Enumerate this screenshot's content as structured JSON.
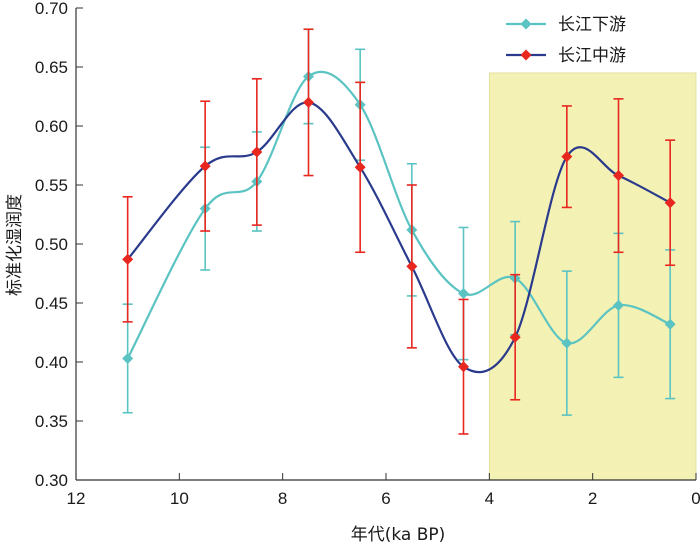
{
  "chart_data": {
    "type": "line",
    "title": "",
    "xlabel": "年代(ka BP)",
    "ylabel": "标准化湿润度",
    "xlim": [
      12,
      0
    ],
    "ylim": [
      0.3,
      0.7
    ],
    "xticks": [
      12,
      10,
      8,
      6,
      4,
      2,
      0
    ],
    "yticks": [
      "0.30",
      "0.35",
      "0.40",
      "0.45",
      "0.50",
      "0.55",
      "0.60",
      "0.65",
      "0.70"
    ],
    "highlight_region": {
      "x_from": 4,
      "x_to": 0,
      "y_from": 0.3,
      "y_to": 0.645,
      "color": "#f4f1b4"
    },
    "legend_position": "top-right",
    "series": [
      {
        "name": "长江下游",
        "color": "#5bc4c2",
        "marker": "diamond",
        "x": [
          11,
          9.5,
          8.5,
          7.5,
          6.5,
          5.5,
          4.5,
          3.5,
          2.5,
          1.5,
          0.5
        ],
        "y": [
          0.403,
          0.53,
          0.553,
          0.642,
          0.618,
          0.512,
          0.458,
          0.471,
          0.416,
          0.448,
          0.432
        ],
        "error": [
          0.046,
          0.052,
          0.042,
          0.04,
          0.047,
          0.056,
          0.056,
          0.048,
          0.061,
          0.061,
          0.063
        ]
      },
      {
        "name": "长江中游",
        "color": "#2a3a8c",
        "marker": "diamond",
        "marker_color": "#e8271f",
        "error_color": "#e8271f",
        "x": [
          11,
          9.5,
          8.5,
          7.5,
          6.5,
          5.5,
          4.5,
          3.5,
          2.5,
          1.5,
          0.5
        ],
        "y": [
          0.487,
          0.566,
          0.578,
          0.62,
          0.565,
          0.481,
          0.396,
          0.421,
          0.574,
          0.558,
          0.535
        ],
        "error": [
          0.053,
          0.055,
          0.062,
          0.062,
          0.072,
          0.069,
          0.057,
          0.053,
          0.043,
          0.065,
          0.053
        ]
      }
    ]
  }
}
